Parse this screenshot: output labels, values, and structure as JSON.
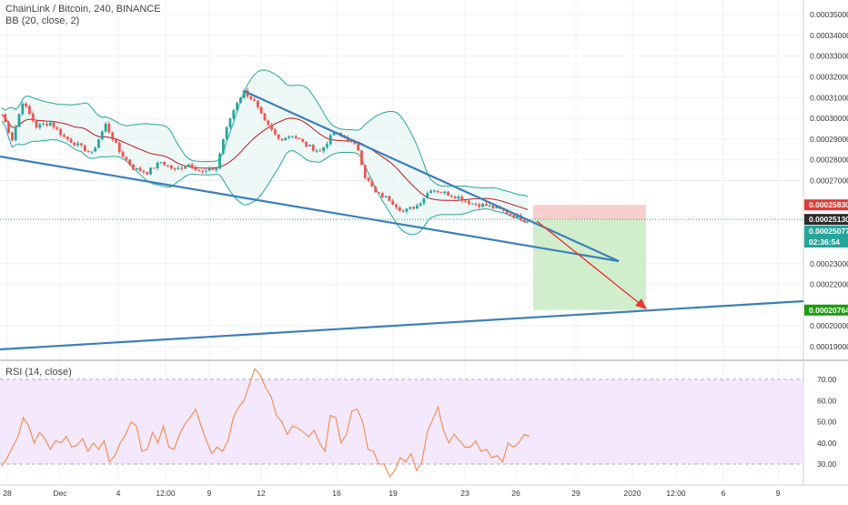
{
  "header": {
    "symbol_title": "ChainLink / Bitcoin, 240, BINANCE",
    "indicator": "BB (20, close, 2)"
  },
  "rsi_panel": {
    "title": "RSI (14, close)"
  },
  "colors": {
    "up": "#26a69a",
    "down": "#ef5350",
    "bb_line": "#26a69a",
    "bb_basis": "#b71c1c",
    "bb_fill": "#e0f2f1",
    "trendline": "#3d7fb8",
    "rsi_line": "#f08a4b",
    "rsi_band": "#f3e5fc",
    "stop_zone": "#f8c5c5",
    "target_zone": "#c8ebc3",
    "red_arrow": "#e53935",
    "current_badge": "#2b2b2b",
    "stop_badge": "#e53935",
    "target_badge": "#1b9c0e",
    "bid_badge": "#26a69a"
  },
  "price_axis": {
    "labels": [
      "0.00035000",
      "0.00034000",
      "0.00033000",
      "0.00032000",
      "0.00031000",
      "0.00030000",
      "0.00029000",
      "0.00028000",
      "0.00027000",
      "0.00023000",
      "0.00022000",
      "0.00020000",
      "0.00019000"
    ],
    "badges": {
      "stop": "0.00025830",
      "current": "0.00025130",
      "bid": "0.00025077",
      "countdown": "02:36:54",
      "target": "0.00020764"
    }
  },
  "rsi_axis": {
    "labels": [
      "70.00",
      "60.00",
      "50.00",
      "40.00",
      "30.00"
    ]
  },
  "time_axis": {
    "labels": [
      "28",
      "Dec",
      "4",
      "12:00",
      "9",
      "12",
      "16",
      "19",
      "23",
      "26",
      "29",
      "2020",
      "12:00",
      "6",
      "9"
    ]
  },
  "chart_data": [
    {
      "type": "candlestick",
      "title": "ChainLink / Bitcoin, 240, BINANCE",
      "price_ylim": [
        0.000185,
        0.000356
      ],
      "price_ticks": [
        0.00019,
        0.0002,
        0.00022,
        0.00023,
        0.00027,
        0.00028,
        0.00029,
        0.0003,
        0.00031,
        0.00032,
        0.00033,
        0.00034,
        0.00035
      ],
      "close_path": [
        {
          "t": 0,
          "v": 0.000302
        },
        {
          "t": 3,
          "v": 0.00029
        },
        {
          "t": 6,
          "v": 0.000308
        },
        {
          "t": 10,
          "v": 0.000296
        },
        {
          "t": 14,
          "v": 0.000298
        },
        {
          "t": 18,
          "v": 0.000291
        },
        {
          "t": 22,
          "v": 0.000287
        },
        {
          "t": 26,
          "v": 0.000283
        },
        {
          "t": 30,
          "v": 0.000297
        },
        {
          "t": 34,
          "v": 0.000284
        },
        {
          "t": 38,
          "v": 0.000276
        },
        {
          "t": 42,
          "v": 0.000274
        },
        {
          "t": 46,
          "v": 0.000279
        },
        {
          "t": 50,
          "v": 0.000275
        },
        {
          "t": 54,
          "v": 0.000278
        },
        {
          "t": 58,
          "v": 0.000274
        },
        {
          "t": 62,
          "v": 0.000276
        },
        {
          "t": 64,
          "v": 0.00029
        },
        {
          "t": 66,
          "v": 0.0003
        },
        {
          "t": 68,
          "v": 0.000308
        },
        {
          "t": 70,
          "v": 0.000313
        },
        {
          "t": 73,
          "v": 0.000308
        },
        {
          "t": 76,
          "v": 0.000298
        },
        {
          "t": 80,
          "v": 0.00029
        },
        {
          "t": 84,
          "v": 0.000292
        },
        {
          "t": 88,
          "v": 0.000287
        },
        {
          "t": 92,
          "v": 0.000284
        },
        {
          "t": 96,
          "v": 0.000293
        },
        {
          "t": 100,
          "v": 0.00029
        },
        {
          "t": 103,
          "v": 0.000285
        },
        {
          "t": 105,
          "v": 0.000272
        },
        {
          "t": 108,
          "v": 0.000264
        },
        {
          "t": 112,
          "v": 0.000261
        },
        {
          "t": 116,
          "v": 0.000255
        },
        {
          "t": 120,
          "v": 0.000258
        },
        {
          "t": 124,
          "v": 0.000266
        },
        {
          "t": 128,
          "v": 0.000264
        },
        {
          "t": 132,
          "v": 0.000262
        },
        {
          "t": 136,
          "v": 0.000259
        },
        {
          "t": 140,
          "v": 0.000258
        },
        {
          "t": 144,
          "v": 0.000256
        },
        {
          "t": 148,
          "v": 0.000253
        },
        {
          "t": 152,
          "v": 0.000251
        }
      ],
      "position": {
        "entry": 0.0002513,
        "stop": 0.0002583,
        "target": 0.00020764
      }
    },
    {
      "type": "line",
      "title": "RSI (14, close)",
      "ylim": [
        24,
        77
      ],
      "bands": [
        30,
        70
      ],
      "ticks": [
        30,
        40,
        50,
        60,
        70
      ],
      "series": [
        {
          "values": [
            29,
            33,
            38,
            43,
            52,
            48,
            40,
            45,
            42,
            37,
            41,
            40,
            43,
            38,
            39,
            42,
            36,
            40,
            37,
            41,
            31,
            34,
            40,
            44,
            50,
            48,
            36,
            37,
            45,
            40,
            48,
            38,
            37,
            44,
            49,
            52,
            56,
            48,
            41,
            35,
            38,
            36,
            41,
            52,
            57,
            60,
            68,
            75,
            72,
            66,
            62,
            53,
            50,
            44,
            48,
            47,
            45,
            43,
            46,
            40,
            36,
            53,
            52,
            40,
            44,
            55,
            56,
            50,
            37,
            36,
            30,
            30,
            24,
            27,
            33,
            31,
            35,
            27,
            31,
            45,
            51,
            57,
            46,
            40,
            44,
            41,
            38,
            38,
            41,
            36,
            37,
            33,
            34,
            31,
            40,
            38,
            40,
            44,
            43
          ]
        }
      ]
    }
  ]
}
